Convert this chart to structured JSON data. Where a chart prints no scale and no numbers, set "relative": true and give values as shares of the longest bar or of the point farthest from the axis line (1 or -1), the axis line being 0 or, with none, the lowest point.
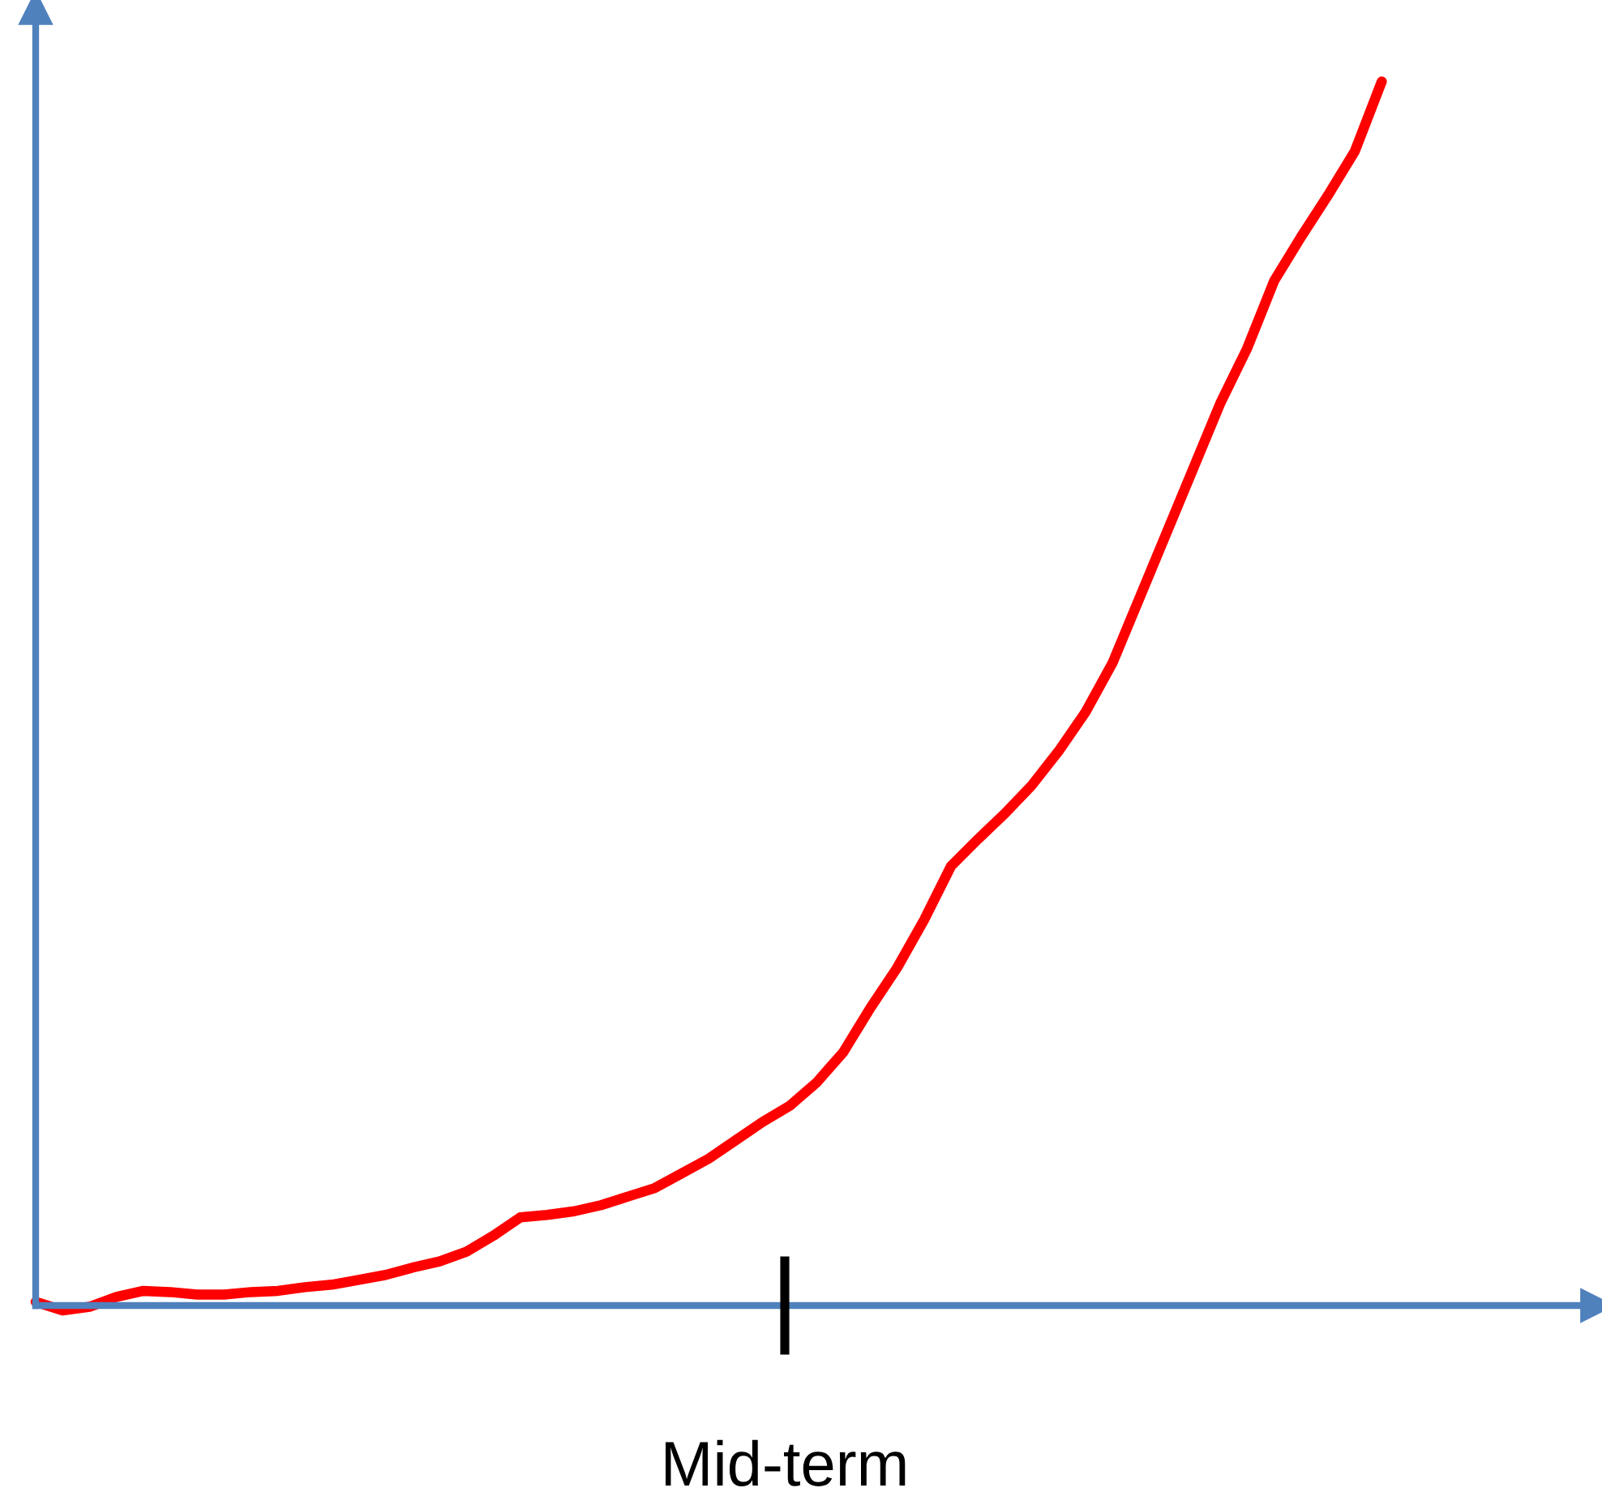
{
  "chart_data": {
    "type": "line",
    "relative": true,
    "categories": [
      null,
      null,
      null,
      null,
      null,
      null,
      null,
      null,
      null,
      null,
      null,
      null,
      null,
      null,
      null,
      null,
      null,
      null,
      null,
      null,
      null,
      null,
      null,
      null,
      null,
      null,
      null,
      null,
      null,
      null,
      null,
      null,
      null,
      null,
      null,
      null,
      null,
      null,
      null,
      null,
      null,
      null,
      null,
      null,
      null,
      null,
      null,
      null,
      null,
      null,
      null,
      null,
      null,
      null,
      null,
      null,
      null,
      null,
      null
    ],
    "series": [
      {
        "color": "#ff0000",
        "values": [
          0.003,
          -0.004,
          -0.001,
          0.007,
          0.012,
          0.011,
          0.009,
          0.009,
          0.011,
          0.012,
          0.015,
          0.017,
          0.021,
          0.025,
          0.031,
          0.036,
          0.044,
          0.057,
          0.072,
          0.074,
          0.077,
          0.082,
          0.089,
          0.096,
          0.108,
          0.12,
          0.135,
          0.15,
          0.163,
          0.182,
          0.207,
          0.243,
          0.276,
          0.315,
          0.359,
          0.381,
          0.402,
          0.425,
          0.453,
          0.485,
          0.525,
          0.578,
          0.631,
          0.684,
          0.737,
          0.782,
          0.837,
          0.873,
          0.907,
          0.943,
          1.0,
          null,
          null,
          null,
          null,
          null,
          null,
          null,
          null
        ]
      }
    ],
    "annotations": [
      "Mid-term"
    ],
    "ref_lines": [
      {
        "axis": "y",
        "value": 0,
        "color": "#4f81bd"
      }
    ],
    "legend": false,
    "marker": "none",
    "line_style": "solid"
  }
}
